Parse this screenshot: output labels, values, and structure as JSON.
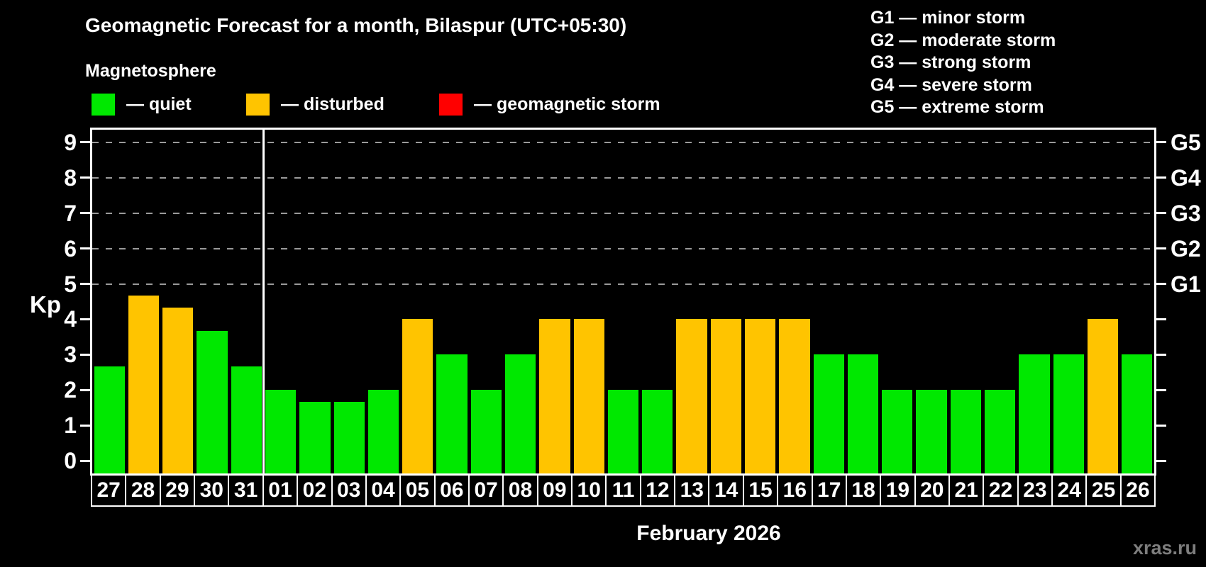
{
  "header": {
    "title": "Geomagnetic Forecast for a month, Bilaspur (UTC+05:30)",
    "subtitle": "Magnetosphere"
  },
  "magnetosphere_legend": [
    {
      "label": "— quiet",
      "state": "quiet",
      "color": "#00e800"
    },
    {
      "label": "— disturbed",
      "state": "disturbed",
      "color": "#ffc400"
    },
    {
      "label": "— geomagnetic storm",
      "state": "storm",
      "color": "#ff0000"
    }
  ],
  "storm_scale_legend": [
    {
      "text": "G1 — minor storm"
    },
    {
      "text": "G2 — moderate storm"
    },
    {
      "text": "G3 — strong storm"
    },
    {
      "text": "G4 — severe storm"
    },
    {
      "text": "G5 — extreme storm"
    }
  ],
  "y_axis": {
    "label": "Kp",
    "ticks": [
      "0",
      "1",
      "2",
      "3",
      "4",
      "5",
      "6",
      "7",
      "8",
      "9"
    ],
    "dashed_gridlines_at": [
      5,
      6,
      7,
      8,
      9
    ]
  },
  "right_axis": {
    "labels": [
      {
        "text": "G1",
        "kp": 5
      },
      {
        "text": "G2",
        "kp": 6
      },
      {
        "text": "G3",
        "kp": 7
      },
      {
        "text": "G4",
        "kp": 8
      },
      {
        "text": "G5",
        "kp": 9
      }
    ]
  },
  "x_axis": {
    "caption": "February 2026",
    "month_separator_after": "31"
  },
  "chart_data": {
    "type": "bar",
    "title": "Geomagnetic Forecast for a month, Bilaspur (UTC+05:30)",
    "ylabel": "Kp",
    "ylim": [
      0,
      9
    ],
    "legend_position": "top",
    "grid": "dashed horizontal at Kp 5-9",
    "categories": [
      "27",
      "28",
      "29",
      "30",
      "31",
      "01",
      "02",
      "03",
      "04",
      "05",
      "06",
      "07",
      "08",
      "09",
      "10",
      "11",
      "12",
      "13",
      "14",
      "15",
      "16",
      "17",
      "18",
      "19",
      "20",
      "21",
      "22",
      "23",
      "24",
      "25",
      "26"
    ],
    "values": [
      2.67,
      4.67,
      4.33,
      3.67,
      2.67,
      2,
      1.67,
      1.67,
      2,
      4,
      3,
      2,
      3,
      4,
      4,
      2,
      2,
      4,
      4,
      4,
      4,
      3,
      3,
      2,
      2,
      2,
      2,
      3,
      3,
      4,
      3
    ],
    "states": [
      "quiet",
      "disturbed",
      "disturbed",
      "quiet",
      "quiet",
      "quiet",
      "quiet",
      "quiet",
      "quiet",
      "disturbed",
      "quiet",
      "quiet",
      "quiet",
      "disturbed",
      "disturbed",
      "quiet",
      "quiet",
      "disturbed",
      "disturbed",
      "disturbed",
      "disturbed",
      "quiet",
      "quiet",
      "quiet",
      "quiet",
      "quiet",
      "quiet",
      "quiet",
      "quiet",
      "disturbed",
      "quiet"
    ],
    "colors": {
      "quiet": "#00e800",
      "disturbed": "#ffc400",
      "storm": "#ff0000"
    }
  },
  "watermark": "xras.ru"
}
